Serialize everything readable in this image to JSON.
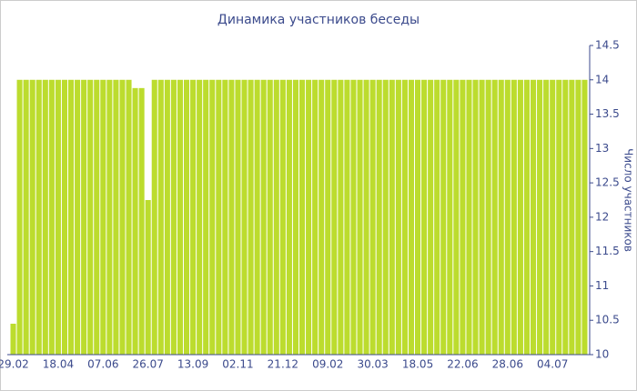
{
  "chart_data": {
    "type": "bar",
    "title": "Динамика участников беседы",
    "y_label": "Число участников",
    "categories": [
      "29.02",
      null,
      null,
      null,
      null,
      null,
      null,
      "18.04",
      null,
      null,
      null,
      null,
      null,
      null,
      "07.06",
      null,
      null,
      null,
      null,
      null,
      null,
      "26.07",
      null,
      null,
      null,
      null,
      null,
      null,
      "13.09",
      null,
      null,
      null,
      null,
      null,
      null,
      "02.11",
      null,
      null,
      null,
      null,
      null,
      null,
      "21.12",
      null,
      null,
      null,
      null,
      null,
      null,
      "09.02",
      null,
      null,
      null,
      null,
      null,
      null,
      "30.03",
      null,
      null,
      null,
      null,
      null,
      null,
      "18.05",
      null,
      null,
      null,
      null,
      null,
      null,
      "22.06",
      null,
      null,
      null,
      null,
      null,
      null,
      "28.06",
      null,
      null,
      null,
      null,
      null,
      null,
      "04.07",
      null,
      null,
      null,
      null,
      null
    ],
    "values": [
      10.45,
      14,
      14,
      14,
      14,
      14,
      14,
      14,
      14,
      14,
      14,
      14,
      14,
      14,
      14,
      14,
      14,
      14,
      14,
      13.88,
      13.88,
      12.25,
      14,
      14,
      14,
      14,
      14,
      14,
      14,
      14,
      14,
      14,
      14,
      14,
      14,
      14,
      14,
      14,
      14,
      14,
      14,
      14,
      14,
      14,
      14,
      14,
      14,
      14,
      14,
      14,
      14,
      14,
      14,
      14,
      14,
      14,
      14,
      14,
      14,
      14,
      14,
      14,
      14,
      14,
      14,
      14,
      14,
      14,
      14,
      14,
      14,
      14,
      14,
      14,
      14,
      14,
      14,
      14,
      14,
      14,
      14,
      14,
      14,
      14,
      14,
      14,
      14,
      14,
      14,
      14
    ],
    "color": "#bcdc2e",
    "ylim": [
      10,
      14.5
    ],
    "yticks": [
      10,
      10.5,
      11,
      11.5,
      12,
      12.5,
      13,
      13.5,
      14,
      14.5
    ],
    "y_axis_side": "right",
    "grid": false
  }
}
